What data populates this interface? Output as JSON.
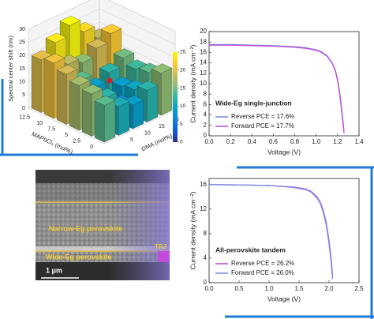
{
  "chart_data": [
    {
      "type": "bar3d",
      "xlabel": "MAPbCl₃ (mol%)",
      "ylabel": "DMA (mol%)",
      "zlabel": "Spectral center shift (nm)",
      "x_categories": [
        0,
        2.5,
        5,
        7.5,
        10,
        12.5
      ],
      "y_categories": [
        null,
        5,
        10,
        15,
        20
      ],
      "values": [
        [
          14,
          11,
          9,
          12,
          16
        ],
        [
          16,
          12,
          7,
          10,
          14
        ],
        [
          17,
          10,
          5,
          9,
          13
        ],
        [
          19,
          14,
          9,
          12,
          15
        ],
        [
          21,
          18,
          16,
          19,
          22
        ],
        [
          20,
          24,
          28,
          23,
          18
        ]
      ],
      "zlim": [
        0,
        30
      ],
      "zticks": [
        0,
        5,
        10,
        15,
        20,
        25,
        30
      ],
      "clim": [
        0,
        25
      ],
      "cticks": [
        0,
        5,
        10,
        15,
        20,
        25
      ]
    },
    {
      "type": "line",
      "annotation": "Wide-Eg single-junction",
      "xlabel": "Voltage (V)",
      "ylabel": "Current density (mA cm⁻²)",
      "x": [
        0,
        0.2,
        0.4,
        0.6,
        0.8,
        0.9,
        1.0,
        1.05,
        1.1,
        1.15,
        1.18,
        1.2,
        1.22,
        1.24,
        1.26
      ],
      "series": [
        {
          "name": "Reverse PCE = 17.6%",
          "color": "#7b8fe0",
          "values": [
            17.5,
            17.5,
            17.4,
            17.3,
            17.1,
            16.9,
            16.5,
            16.1,
            15.4,
            14.0,
            12.5,
            10.8,
            8.2,
            4.8,
            0.9
          ]
        },
        {
          "name": "Forward PCE = 17.7%",
          "color": "#c04fd6",
          "values": [
            17.4,
            17.4,
            17.3,
            17.2,
            17.0,
            16.8,
            16.4,
            16.0,
            15.3,
            13.9,
            12.4,
            10.6,
            8.0,
            4.4,
            0.5
          ]
        }
      ],
      "xlim": [
        0,
        1.4
      ],
      "xticks": [
        {
          "value": 0,
          "label": "0.0"
        },
        0.2,
        0.4,
        0.6,
        0.8,
        {
          "value": 1,
          "label": "1.0"
        },
        1.2,
        1.4
      ],
      "ylim": [
        0,
        20
      ],
      "yticks": [
        0,
        2,
        4,
        6,
        8,
        10,
        12,
        14,
        16,
        18,
        20
      ],
      "legend": "lower left"
    },
    {
      "type": "line",
      "annotation": "All-perovskite tandem",
      "xlabel": "Voltage (V)",
      "ylabel": "Current density (mA cm⁻²)",
      "x": [
        0,
        0.5,
        1.0,
        1.4,
        1.6,
        1.7,
        1.8,
        1.85,
        1.9,
        1.95,
        2.0,
        2.03,
        2.06
      ],
      "series": [
        {
          "name": "Reverse PCE = 26.2%",
          "color": "#c04fd6",
          "values": [
            16.0,
            15.95,
            15.85,
            15.6,
            15.3,
            14.9,
            14.0,
            13.2,
            11.9,
            10.0,
            6.9,
            4.4,
            1.2
          ]
        },
        {
          "name": "Forward PCE = 26.0%",
          "color": "#7b8fe0",
          "values": [
            16.0,
            15.95,
            15.85,
            15.55,
            15.2,
            14.8,
            13.8,
            13.0,
            11.6,
            9.6,
            6.4,
            3.8,
            0.6
          ]
        }
      ],
      "xlim": [
        0,
        2.5
      ],
      "xticks": [
        {
          "value": 0,
          "label": "0.0"
        },
        0.5,
        {
          "value": 1,
          "label": "1.0"
        },
        1.5,
        {
          "value": 2,
          "label": "2.0"
        },
        2.5
      ],
      "ylim": [
        0,
        17
      ],
      "yticks": [
        0,
        4,
        8,
        12,
        16
      ],
      "legend": "lower left"
    }
  ],
  "image": {
    "labels": [
      "Narrow-Eg perovskite",
      "TRJ",
      "Wide-Eg perovskite"
    ],
    "scale_bar": "1 μm"
  }
}
